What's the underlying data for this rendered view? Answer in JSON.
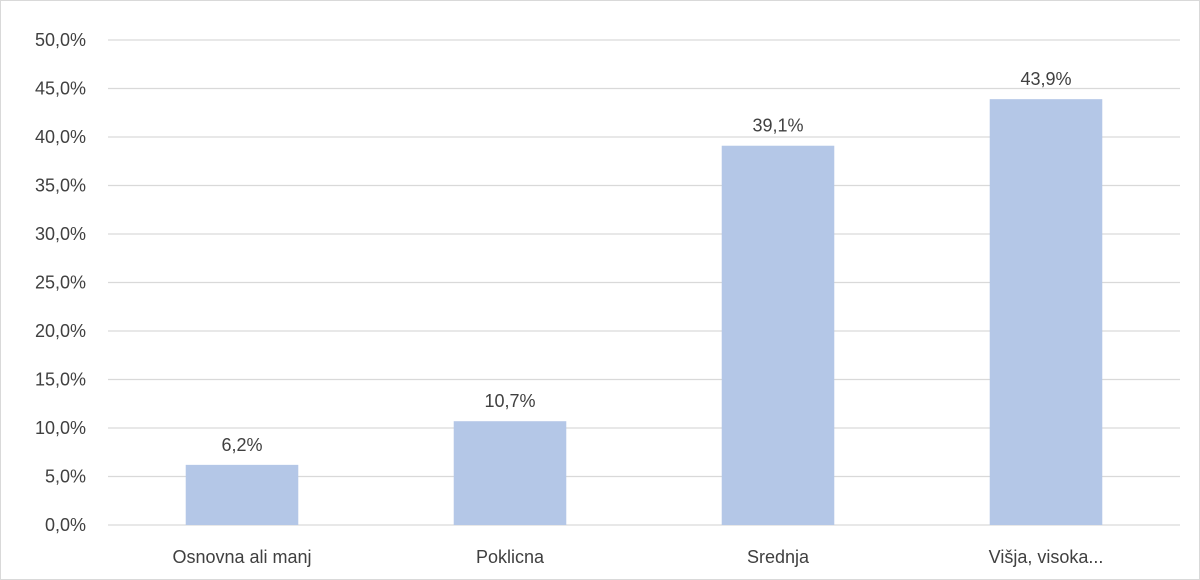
{
  "chart_data": {
    "type": "bar",
    "title": "",
    "xlabel": "",
    "ylabel": "",
    "categories": [
      "Osnovna ali manj",
      "Poklicna",
      "Srednja",
      "Višja, visoka..."
    ],
    "values": [
      6.2,
      10.7,
      39.1,
      43.9
    ],
    "data_labels": [
      "6,2%",
      "10,7%",
      "39,1%",
      "43,9%"
    ],
    "ylim": [
      0,
      50
    ],
    "y_ticks": [
      {
        "value": 0,
        "label": "0,0%"
      },
      {
        "value": 5,
        "label": "5,0%"
      },
      {
        "value": 10,
        "label": "10,0%"
      },
      {
        "value": 15,
        "label": "15,0%"
      },
      {
        "value": 20,
        "label": "20,0%"
      },
      {
        "value": 25,
        "label": "25,0%"
      },
      {
        "value": 30,
        "label": "30,0%"
      },
      {
        "value": 35,
        "label": "35,0%"
      },
      {
        "value": 40,
        "label": "40,0%"
      },
      {
        "value": 45,
        "label": "45,0%"
      },
      {
        "value": 50,
        "label": "50,0%"
      }
    ],
    "grid": true,
    "legend": "none",
    "bar_color": "#b4c7e7",
    "grid_color": "#d9d9d9"
  }
}
